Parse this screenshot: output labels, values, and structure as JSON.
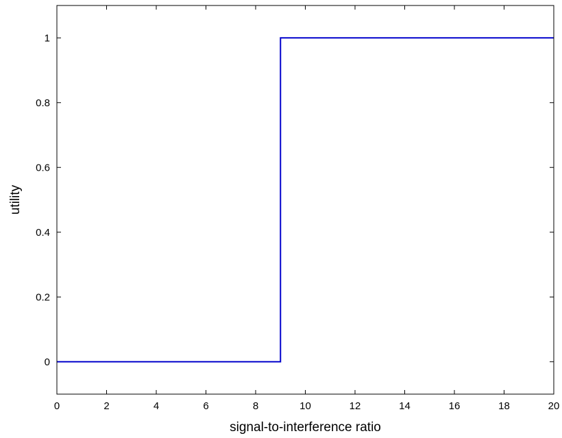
{
  "chart_data": {
    "type": "line",
    "title": "",
    "xlabel": "signal-to-interference ratio",
    "ylabel": "utility",
    "xlim": [
      0,
      20
    ],
    "ylim": [
      -0.1,
      1.1
    ],
    "grid": false,
    "legend": "none",
    "x_ticks": [
      0,
      2,
      4,
      6,
      8,
      10,
      12,
      14,
      16,
      18,
      20
    ],
    "y_ticks": [
      0,
      0.2,
      0.4,
      0.6,
      0.8,
      1
    ],
    "x_tick_labels": [
      "0",
      "2",
      "4",
      "6",
      "8",
      "10",
      "12",
      "14",
      "16",
      "18",
      "20"
    ],
    "y_tick_labels": [
      "0",
      "0.2",
      "0.4",
      "0.6",
      "0.8",
      "1"
    ],
    "series": [
      {
        "color": "#0000cc",
        "x": [
          0,
          9,
          9,
          20
        ],
        "y": [
          0,
          0,
          1,
          1
        ]
      }
    ]
  }
}
